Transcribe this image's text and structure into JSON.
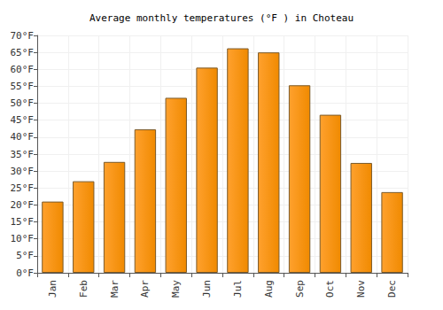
{
  "chart_data": {
    "type": "bar",
    "title": "Average monthly temperatures (°F ) in Choteau",
    "categories": [
      "Jan",
      "Feb",
      "Mar",
      "Apr",
      "May",
      "Jun",
      "Jul",
      "Aug",
      "Sep",
      "Oct",
      "Nov",
      "Dec"
    ],
    "values": [
      21,
      27,
      32.7,
      42.3,
      51.6,
      60.5,
      66.2,
      65,
      55.3,
      46.6,
      32.4,
      23.8
    ],
    "color": "#ffa12e",
    "ylim": [
      0,
      70
    ],
    "yticks": [
      {
        "value": 0,
        "label": "0°F"
      },
      {
        "value": 5,
        "label": "5°F"
      },
      {
        "value": 10,
        "label": "10°F"
      },
      {
        "value": 15,
        "label": "15°F"
      },
      {
        "value": 20,
        "label": "20°F"
      },
      {
        "value": 25,
        "label": "25°F"
      },
      {
        "value": 30,
        "label": "30°F"
      },
      {
        "value": 35,
        "label": "35°F"
      },
      {
        "value": 40,
        "label": "40°F"
      },
      {
        "value": 45,
        "label": "45°F"
      },
      {
        "value": 50,
        "label": "50°F"
      },
      {
        "value": 55,
        "label": "55°F"
      },
      {
        "value": 60,
        "label": "60°F"
      },
      {
        "value": 65,
        "label": "65°F"
      },
      {
        "value": 70,
        "label": "70°F"
      }
    ],
    "grid": true
  }
}
